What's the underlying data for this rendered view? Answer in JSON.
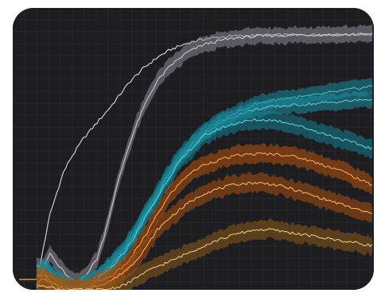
{
  "chart_data": {
    "type": "line",
    "title": "",
    "xlabel": "",
    "ylabel": "",
    "xlim": [
      0,
      100
    ],
    "ylim": [
      0,
      100
    ],
    "grid": true,
    "legend": "none",
    "colors": {
      "background": "#1d1d21",
      "grid": "#2e2e34",
      "axis_stub": "#e0962a"
    },
    "series": [
      {
        "color": "#d9d9e0",
        "band": "#8a8a93",
        "band_width": 0,
        "x": [
          0,
          2,
          4,
          6,
          8,
          10,
          12,
          14,
          16,
          18,
          20,
          22,
          25,
          28,
          32,
          36,
          40,
          45,
          50,
          55,
          60,
          65,
          70,
          75,
          80,
          85,
          90,
          95,
          100
        ],
        "y": [
          2,
          16,
          29,
          37,
          45,
          50,
          54,
          58,
          61,
          64,
          67,
          70,
          75,
          80,
          85,
          89,
          92,
          94.5,
          96,
          96.8,
          97.2,
          97.4,
          97.5,
          97.6,
          97.6,
          97.7,
          97.7,
          97.8,
          97.8
        ]
      },
      {
        "color": "#c9c9d2",
        "band": "#8a8a93",
        "band_width": 3.5,
        "x": [
          0,
          2,
          4,
          6,
          8,
          10,
          12,
          14,
          16,
          18,
          20,
          22,
          24,
          26,
          28,
          30,
          33,
          36,
          40,
          45,
          50,
          55,
          60,
          65,
          70,
          80,
          90,
          100
        ],
        "y": [
          10,
          8,
          14,
          10,
          7,
          4,
          3,
          5,
          8,
          12,
          20,
          30,
          40,
          49,
          57,
          64,
          73,
          80,
          86,
          91,
          94,
          95.5,
          96.5,
          97,
          97.3,
          97.6,
          97.7,
          97.8
        ]
      },
      {
        "color": "#44bdd0",
        "band": "#17899c",
        "band_width": 3.5,
        "x": [
          0,
          2,
          4,
          6,
          8,
          10,
          12,
          14,
          16,
          18,
          20,
          22,
          24,
          26,
          28,
          30,
          32,
          35,
          38,
          42,
          46,
          50,
          55,
          60,
          65,
          70,
          75,
          80,
          85,
          90,
          95,
          100
        ],
        "y": [
          6,
          9,
          7,
          5,
          3,
          1.5,
          1,
          2,
          3,
          5,
          7,
          10,
          13,
          16,
          20,
          24,
          29,
          35,
          42,
          50,
          56,
          61,
          65,
          68,
          71,
          72.5,
          73.5,
          74,
          75,
          76,
          77,
          78
        ]
      },
      {
        "color": "#55c6d6",
        "band": "#1d8ea0",
        "band_width": 3.5,
        "x": [
          0,
          2,
          4,
          6,
          8,
          10,
          12,
          14,
          16,
          18,
          20,
          22,
          24,
          26,
          28,
          30,
          32,
          35,
          38,
          42,
          46,
          50,
          55,
          60,
          65,
          70,
          75,
          80,
          85,
          90,
          95,
          100
        ],
        "y": [
          4,
          8,
          6,
          4,
          2,
          1,
          0.5,
          1.5,
          3,
          4.5,
          6.5,
          9,
          12,
          15,
          19,
          23,
          28,
          34,
          41,
          49,
          55,
          60,
          64,
          67,
          69,
          70,
          70.5,
          71,
          71.5,
          72,
          72.5,
          73
        ]
      },
      {
        "color": "#5ccbd9",
        "band": "#14808f",
        "band_width": 4,
        "x": [
          0,
          2,
          4,
          6,
          8,
          10,
          12,
          14,
          16,
          18,
          20,
          22,
          24,
          26,
          28,
          30,
          32,
          35,
          38,
          42,
          46,
          50,
          55,
          60,
          65,
          70,
          75,
          80,
          85,
          90,
          95,
          100
        ],
        "y": [
          5,
          7,
          5,
          3,
          2,
          1,
          0.5,
          1.5,
          3,
          4,
          6,
          8,
          11,
          14,
          18,
          22,
          27,
          33,
          40,
          48,
          54,
          59,
          62,
          64,
          65,
          65,
          64,
          62,
          60,
          58,
          56,
          54
        ]
      },
      {
        "color": "#ffa14a",
        "band": "#b4520e",
        "band_width": 4,
        "x": [
          0,
          2,
          4,
          6,
          8,
          10,
          12,
          14,
          16,
          18,
          20,
          22,
          24,
          26,
          28,
          30,
          33,
          36,
          40,
          45,
          50,
          55,
          60,
          65,
          70,
          75,
          80,
          85,
          90,
          95,
          100
        ],
        "y": [
          5,
          6,
          4,
          2,
          1,
          0,
          0,
          0.5,
          1.5,
          3,
          4,
          5,
          7,
          9,
          12,
          16,
          22,
          29,
          37,
          44,
          48,
          50,
          51.5,
          52,
          52,
          51.5,
          50,
          48,
          46,
          43,
          40
        ]
      },
      {
        "color": "#ffb05a",
        "band": "#a84e0f",
        "band_width": 4,
        "x": [
          0,
          2,
          4,
          6,
          8,
          10,
          12,
          14,
          16,
          18,
          20,
          22,
          24,
          26,
          28,
          30,
          33,
          36,
          40,
          45,
          50,
          55,
          60,
          65,
          70,
          75,
          80,
          85,
          90,
          95,
          100
        ],
        "y": [
          3,
          4,
          3,
          1.5,
          0.5,
          0,
          0,
          0,
          0.5,
          1.5,
          2.5,
          3.5,
          5,
          7,
          9,
          12,
          17,
          23,
          28,
          33,
          37,
          39,
          40.5,
          41,
          40.5,
          39,
          37,
          35,
          33,
          31,
          29
        ]
      },
      {
        "color": "#f2c27a",
        "band": "#8a5a1c",
        "band_width": 4,
        "x": [
          0,
          2,
          4,
          6,
          8,
          10,
          12,
          14,
          16,
          18,
          20,
          22,
          24,
          26,
          28,
          30,
          33,
          36,
          40,
          45,
          50,
          55,
          60,
          65,
          70,
          75,
          80,
          85,
          90,
          95,
          100
        ],
        "y": [
          1,
          2,
          1,
          0.5,
          0,
          0,
          0,
          0,
          0,
          0,
          0,
          0.5,
          1,
          2,
          3,
          5,
          7,
          9,
          11,
          14,
          17,
          19.5,
          21.5,
          23,
          23,
          22,
          21,
          20,
          19,
          18,
          17
        ]
      }
    ]
  }
}
